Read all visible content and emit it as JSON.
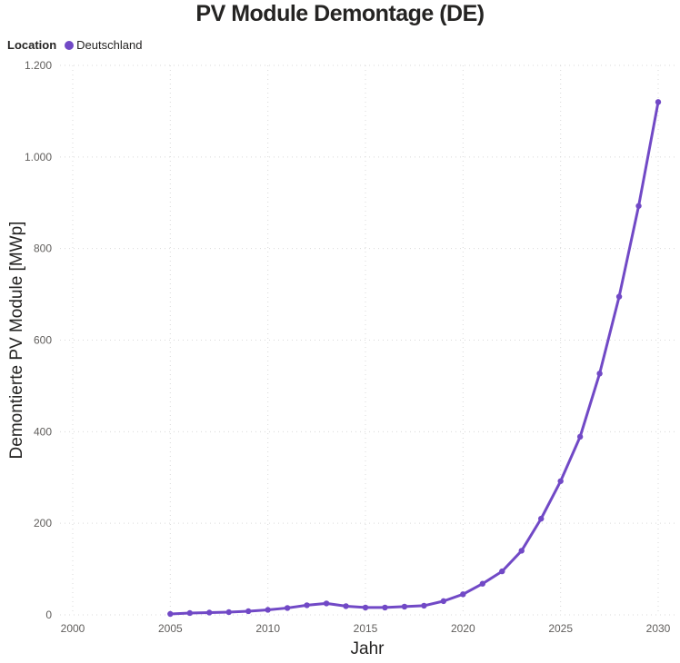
{
  "header": {
    "title": "PV Module Demontage (DE)"
  },
  "legend": {
    "title": "Location",
    "items": [
      {
        "label": "Deutschland",
        "color": "#7149c6"
      }
    ]
  },
  "chart_data": {
    "type": "line",
    "title": "PV Module Demontage (DE)",
    "xlabel": "Jahr",
    "ylabel": "Demontierte PV Module [MWp]",
    "xlim": [
      2000,
      2030
    ],
    "ylim": [
      0,
      1200
    ],
    "x_ticks": [
      2000,
      2005,
      2010,
      2015,
      2020,
      2025,
      2030
    ],
    "y_ticks": [
      0,
      200,
      400,
      600,
      800,
      1000,
      1200
    ],
    "y_tick_labels": [
      "0",
      "200",
      "400",
      "600",
      "800",
      "1.000",
      "1.200"
    ],
    "grid": "dotted",
    "legend_position": "top-left",
    "series": [
      {
        "name": "Deutschland",
        "color": "#7149c6",
        "x": [
          2005,
          2006,
          2007,
          2008,
          2009,
          2010,
          2011,
          2012,
          2013,
          2014,
          2015,
          2016,
          2017,
          2018,
          2019,
          2020,
          2021,
          2022,
          2023,
          2024,
          2025,
          2026,
          2027,
          2028,
          2029,
          2030
        ],
        "values": [
          2,
          4,
          5,
          6,
          8,
          11,
          15,
          21,
          25,
          19,
          16,
          16,
          18,
          20,
          30,
          45,
          68,
          95,
          140,
          210,
          292,
          389,
          527,
          695,
          893,
          1120
        ]
      }
    ]
  },
  "colors": {
    "series_purple": "#7149c6",
    "title_text": "#252423",
    "tick_text": "#605e5c",
    "gridline": "#d9d9d9",
    "background": "#ffffff"
  }
}
